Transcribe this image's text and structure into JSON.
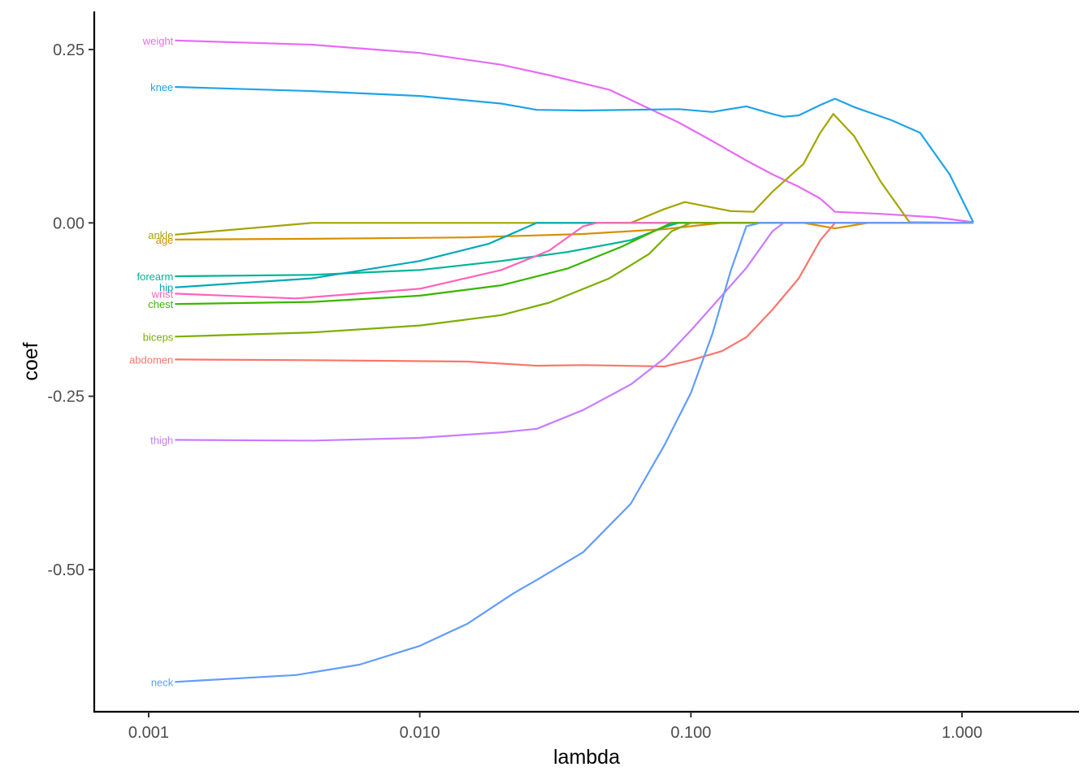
{
  "chart_data": {
    "type": "line",
    "title": "",
    "xlabel": "lambda",
    "ylabel": "coef",
    "x_scale": "log10",
    "xlim": [
      0.00063,
      2.7
    ],
    "ylim": [
      -0.705,
      0.305
    ],
    "x_ticks": [
      {
        "value": 0.001,
        "label": "0.001"
      },
      {
        "value": 0.01,
        "label": "0.010"
      },
      {
        "value": 0.1,
        "label": "0.100"
      },
      {
        "value": 1,
        "label": "1.000"
      }
    ],
    "y_ticks": [
      {
        "value": 0.25,
        "label": "0.25"
      },
      {
        "value": 0.0,
        "label": "0.00"
      },
      {
        "value": -0.25,
        "label": "-0.25"
      },
      {
        "value": -0.5,
        "label": "-0.50"
      }
    ],
    "grid": false,
    "legend": "none",
    "series_labels_at": "left end of each line",
    "series": [
      {
        "name": "weight",
        "color": "#E76BF3",
        "points": [
          [
            0.00125,
            0.263
          ],
          [
            0.004,
            0.257
          ],
          [
            0.01,
            0.245
          ],
          [
            0.02,
            0.228
          ],
          [
            0.03,
            0.213
          ],
          [
            0.05,
            0.192
          ],
          [
            0.07,
            0.165
          ],
          [
            0.09,
            0.145
          ],
          [
            0.12,
            0.118
          ],
          [
            0.16,
            0.09
          ],
          [
            0.2,
            0.07
          ],
          [
            0.25,
            0.052
          ],
          [
            0.3,
            0.035
          ],
          [
            0.34,
            0.016
          ],
          [
            0.5,
            0.013
          ],
          [
            0.8,
            0.008
          ],
          [
            1.1,
            0.001
          ]
        ]
      },
      {
        "name": "knee",
        "color": "#20A3E7",
        "points": [
          [
            0.00125,
            0.196
          ],
          [
            0.004,
            0.19
          ],
          [
            0.01,
            0.183
          ],
          [
            0.02,
            0.172
          ],
          [
            0.027,
            0.163
          ],
          [
            0.04,
            0.162
          ],
          [
            0.06,
            0.163
          ],
          [
            0.09,
            0.164
          ],
          [
            0.12,
            0.16
          ],
          [
            0.16,
            0.168
          ],
          [
            0.2,
            0.157
          ],
          [
            0.22,
            0.153
          ],
          [
            0.25,
            0.155
          ],
          [
            0.3,
            0.17
          ],
          [
            0.34,
            0.179
          ],
          [
            0.4,
            0.167
          ],
          [
            0.55,
            0.148
          ],
          [
            0.7,
            0.13
          ],
          [
            0.9,
            0.07
          ],
          [
            1.1,
            0.001
          ]
        ]
      },
      {
        "name": "ankle",
        "color": "#A3A500",
        "points": [
          [
            0.00125,
            -0.017
          ],
          [
            0.004,
            0
          ],
          [
            0.06,
            0
          ],
          [
            0.08,
            0.02
          ],
          [
            0.095,
            0.03
          ],
          [
            0.14,
            0.017
          ],
          [
            0.17,
            0.016
          ],
          [
            0.2,
            0.045
          ],
          [
            0.26,
            0.085
          ],
          [
            0.3,
            0.13
          ],
          [
            0.335,
            0.157
          ],
          [
            0.4,
            0.125
          ],
          [
            0.5,
            0.06
          ],
          [
            0.64,
            0.001
          ],
          [
            1.1,
            0
          ]
        ]
      },
      {
        "name": "age",
        "color": "#D89000",
        "points": [
          [
            0.00125,
            -0.024
          ],
          [
            0.004,
            -0.023
          ],
          [
            0.015,
            -0.021
          ],
          [
            0.04,
            -0.016
          ],
          [
            0.08,
            -0.009
          ],
          [
            0.13,
            0
          ],
          [
            0.26,
            0
          ],
          [
            0.34,
            -0.008
          ],
          [
            0.45,
            0
          ],
          [
            1.1,
            0
          ]
        ]
      },
      {
        "name": "forearm",
        "color": "#00B496",
        "points": [
          [
            0.00125,
            -0.077
          ],
          [
            0.004,
            -0.075
          ],
          [
            0.01,
            -0.068
          ],
          [
            0.02,
            -0.055
          ],
          [
            0.035,
            -0.042
          ],
          [
            0.06,
            -0.025
          ],
          [
            0.08,
            -0.006
          ],
          [
            0.09,
            0
          ],
          [
            1.1,
            0
          ]
        ]
      },
      {
        "name": "hip",
        "color": "#00A9B8",
        "points": [
          [
            0.00125,
            -0.093
          ],
          [
            0.004,
            -0.08
          ],
          [
            0.01,
            -0.055
          ],
          [
            0.018,
            -0.03
          ],
          [
            0.027,
            0
          ],
          [
            1.1,
            0
          ]
        ]
      },
      {
        "name": "wrist",
        "color": "#FF62BC",
        "points": [
          [
            0.00125,
            -0.102
          ],
          [
            0.0035,
            -0.109
          ],
          [
            0.01,
            -0.095
          ],
          [
            0.02,
            -0.068
          ],
          [
            0.03,
            -0.04
          ],
          [
            0.04,
            -0.005
          ],
          [
            0.045,
            0
          ],
          [
            1.1,
            0
          ]
        ]
      },
      {
        "name": "chest",
        "color": "#39B600",
        "points": [
          [
            0.00125,
            -0.117
          ],
          [
            0.004,
            -0.114
          ],
          [
            0.01,
            -0.105
          ],
          [
            0.02,
            -0.09
          ],
          [
            0.035,
            -0.066
          ],
          [
            0.055,
            -0.035
          ],
          [
            0.075,
            -0.01
          ],
          [
            0.085,
            0
          ],
          [
            1.1,
            0
          ]
        ]
      },
      {
        "name": "biceps",
        "color": "#7CAE00",
        "points": [
          [
            0.00125,
            -0.164
          ],
          [
            0.004,
            -0.158
          ],
          [
            0.01,
            -0.148
          ],
          [
            0.02,
            -0.133
          ],
          [
            0.03,
            -0.115
          ],
          [
            0.05,
            -0.08
          ],
          [
            0.07,
            -0.045
          ],
          [
            0.085,
            -0.012
          ],
          [
            0.1,
            0
          ],
          [
            1.1,
            0
          ]
        ]
      },
      {
        "name": "abdomen",
        "color": "#F8766D",
        "points": [
          [
            0.00125,
            -0.197
          ],
          [
            0.004,
            -0.198
          ],
          [
            0.015,
            -0.2
          ],
          [
            0.027,
            -0.206
          ],
          [
            0.04,
            -0.205
          ],
          [
            0.08,
            -0.207
          ],
          [
            0.1,
            -0.198
          ],
          [
            0.13,
            -0.185
          ],
          [
            0.16,
            -0.165
          ],
          [
            0.2,
            -0.125
          ],
          [
            0.25,
            -0.08
          ],
          [
            0.3,
            -0.025
          ],
          [
            0.34,
            0
          ],
          [
            1.1,
            0
          ]
        ]
      },
      {
        "name": "thigh",
        "color": "#C77CFF",
        "points": [
          [
            0.00125,
            -0.313
          ],
          [
            0.004,
            -0.314
          ],
          [
            0.01,
            -0.31
          ],
          [
            0.02,
            -0.302
          ],
          [
            0.027,
            -0.297
          ],
          [
            0.04,
            -0.27
          ],
          [
            0.06,
            -0.233
          ],
          [
            0.08,
            -0.195
          ],
          [
            0.1,
            -0.155
          ],
          [
            0.13,
            -0.105
          ],
          [
            0.16,
            -0.065
          ],
          [
            0.2,
            -0.012
          ],
          [
            0.22,
            0
          ],
          [
            1.1,
            0
          ]
        ]
      },
      {
        "name": "neck",
        "color": "#619CFF",
        "points": [
          [
            0.00125,
            -0.662
          ],
          [
            0.0035,
            -0.652
          ],
          [
            0.006,
            -0.637
          ],
          [
            0.01,
            -0.61
          ],
          [
            0.015,
            -0.578
          ],
          [
            0.022,
            -0.535
          ],
          [
            0.027,
            -0.515
          ],
          [
            0.04,
            -0.475
          ],
          [
            0.06,
            -0.405
          ],
          [
            0.08,
            -0.32
          ],
          [
            0.1,
            -0.245
          ],
          [
            0.12,
            -0.16
          ],
          [
            0.14,
            -0.07
          ],
          [
            0.16,
            -0.005
          ],
          [
            0.18,
            0
          ],
          [
            1.1,
            0
          ]
        ]
      }
    ]
  }
}
